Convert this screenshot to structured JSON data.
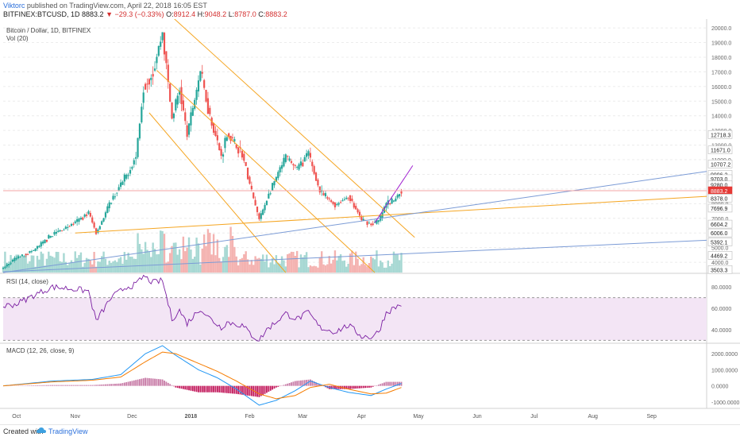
{
  "header": {
    "author": "Viktorc",
    "published_text": "published on TradingView.com, April 22, 2018 16:05 EST",
    "symbol": "BITFINEX:BTCUSD, 1D",
    "last": "8883.2",
    "arrow": "▼",
    "change": "−29.3 (−0.33%)",
    "open_label": "O:",
    "open": "8912.4",
    "high_label": "H:",
    "high": "9048.2",
    "low_label": "L:",
    "low": "8787.0",
    "close_label": "C:",
    "close": "8883.2"
  },
  "panes": {
    "main_title": "Bitcoin / Dollar, 1D, BITFINEX",
    "volume_label": "Vol (20)",
    "rsi_label": "RSI (14, close)",
    "macd_label": "MACD (12, 26, close, 9)"
  },
  "footer": {
    "created": "Created with",
    "brand": "TradingView"
  },
  "colors": {
    "up": "#26a69a",
    "down": "#ef5350",
    "channel": "#f5a623",
    "blue_line": "#7b9bd6",
    "purple_line": "#a020d0",
    "rsi_line": "#7b1fa2",
    "rsi_band": "#f3e5f5",
    "macd_line": "#2196f3",
    "signal_line": "#f57c00"
  },
  "chart_data": [
    {
      "type": "candlestick",
      "title": "Bitcoin / Dollar, 1D, BITFINEX",
      "ylim": [
        3300,
        20600
      ],
      "x_ticks": [
        "Oct",
        "Nov",
        "Dec",
        "2018",
        "Feb",
        "Mar",
        "Apr",
        "May",
        "Jun",
        "Jul",
        "Aug",
        "Sep"
      ],
      "y_ticks": [
        20000,
        19000,
        18000,
        17000,
        16000,
        15000,
        14000,
        13000,
        12000,
        11000,
        10000,
        9000,
        8000,
        7000,
        6000,
        5000,
        4000
      ],
      "price_labels": [
        "12718.3",
        "11671.0",
        "10707.2",
        "9996.2",
        "9703.0",
        "9280.0",
        "8883.2",
        "8378.0",
        "7696.9",
        "6604.2",
        "6006.0",
        "5392.1",
        "4469.2",
        "3503.3"
      ],
      "anchors": [
        [
          "2017-09-24",
          3600
        ],
        [
          "2017-10-01",
          4300
        ],
        [
          "2017-10-10",
          4800
        ],
        [
          "2017-10-20",
          5900
        ],
        [
          "2017-11-01",
          6700
        ],
        [
          "2017-11-08",
          7400
        ],
        [
          "2017-11-12",
          6000
        ],
        [
          "2017-11-20",
          8200
        ],
        [
          "2017-11-28",
          9900
        ],
        [
          "2017-12-03",
          11200
        ],
        [
          "2017-12-07",
          16000
        ],
        [
          "2017-12-12",
          17000
        ],
        [
          "2017-12-17",
          19700
        ],
        [
          "2017-12-22",
          13800
        ],
        [
          "2017-12-26",
          15800
        ],
        [
          "2017-12-30",
          12700
        ],
        [
          "2018-01-06",
          17100
        ],
        [
          "2018-01-10",
          14500
        ],
        [
          "2018-01-17",
          11200
        ],
        [
          "2018-01-20",
          12800
        ],
        [
          "2018-01-28",
          11400
        ],
        [
          "2018-02-02",
          8800
        ],
        [
          "2018-02-06",
          6900
        ],
        [
          "2018-02-10",
          8300
        ],
        [
          "2018-02-20",
          11200
        ],
        [
          "2018-02-26",
          10400
        ],
        [
          "2018-03-04",
          11400
        ],
        [
          "2018-03-10",
          8800
        ],
        [
          "2018-03-18",
          7900
        ],
        [
          "2018-03-25",
          8500
        ],
        [
          "2018-04-01",
          6900
        ],
        [
          "2018-04-06",
          6600
        ],
        [
          "2018-04-10",
          6800
        ],
        [
          "2018-04-14",
          8000
        ],
        [
          "2018-04-18",
          8200
        ],
        [
          "2018-04-22",
          8883
        ]
      ],
      "volume": {
        "name": "Vol (20)"
      },
      "drawings": [
        {
          "kind": "channel-line",
          "p1": [
            "2017-12-20",
            21000
          ],
          "p2": [
            "2018-04-29",
            5700
          ]
        },
        {
          "kind": "channel-line",
          "p1": [
            "2017-12-14",
            17100
          ],
          "p2": [
            "2018-04-08",
            3300
          ]
        },
        {
          "kind": "channel-line",
          "p1": [
            "2017-12-10",
            14200
          ],
          "p2": [
            "2018-02-20",
            3300
          ]
        },
        {
          "kind": "support-line",
          "p1": [
            "2017-11-01",
            6000
          ],
          "p2": [
            "2018-09-30",
            8500
          ]
        },
        {
          "kind": "trend-line",
          "p1": [
            "2017-09-24",
            3350
          ],
          "p2": [
            "2018-09-30",
            5500
          ]
        },
        {
          "kind": "trend-line",
          "p1": [
            "2017-09-24",
            3300
          ],
          "p2": [
            "2018-09-30",
            10200
          ]
        },
        {
          "kind": "trend-line",
          "p1": [
            "2018-04-08",
            6700
          ],
          "p2": [
            "2018-04-28",
            10600
          ]
        }
      ]
    },
    {
      "type": "line",
      "title": "RSI (14, close)",
      "ylim": [
        28,
        92
      ],
      "y_ticks": [
        80,
        60,
        40
      ],
      "y_tick_labels": [
        "80.0000",
        "60.0000",
        "40.0000"
      ],
      "bands": [
        70,
        30
      ],
      "anchors": [
        [
          "2017-09-24",
          62
        ],
        [
          "2017-10-01",
          64
        ],
        [
          "2017-10-10",
          72
        ],
        [
          "2017-10-20",
          80
        ],
        [
          "2017-11-01",
          78
        ],
        [
          "2017-11-08",
          76
        ],
        [
          "2017-11-12",
          48
        ],
        [
          "2017-11-20",
          70
        ],
        [
          "2017-11-28",
          80
        ],
        [
          "2017-12-03",
          82
        ],
        [
          "2017-12-07",
          90
        ],
        [
          "2017-12-12",
          84
        ],
        [
          "2017-12-17",
          86
        ],
        [
          "2017-12-22",
          50
        ],
        [
          "2017-12-26",
          58
        ],
        [
          "2017-12-30",
          46
        ],
        [
          "2018-01-06",
          60
        ],
        [
          "2018-01-10",
          52
        ],
        [
          "2018-01-17",
          42
        ],
        [
          "2018-01-20",
          47
        ],
        [
          "2018-01-28",
          44
        ],
        [
          "2018-02-02",
          35
        ],
        [
          "2018-02-06",
          30
        ],
        [
          "2018-02-10",
          40
        ],
        [
          "2018-02-20",
          55
        ],
        [
          "2018-02-26",
          50
        ],
        [
          "2018-03-04",
          56
        ],
        [
          "2018-03-10",
          42
        ],
        [
          "2018-03-18",
          38
        ],
        [
          "2018-03-25",
          44
        ],
        [
          "2018-04-01",
          34
        ],
        [
          "2018-04-06",
          33
        ],
        [
          "2018-04-10",
          38
        ],
        [
          "2018-04-14",
          56
        ],
        [
          "2018-04-18",
          60
        ],
        [
          "2018-04-22",
          64
        ]
      ]
    },
    {
      "type": "line",
      "title": "MACD (12, 26, close, 9)",
      "ylim": [
        -1400,
        2600
      ],
      "y_ticks": [
        2000,
        1000,
        0,
        -1000
      ],
      "y_tick_labels": [
        "2000.0000",
        "1000.0000",
        "0.0000",
        "-1000.0000"
      ],
      "series": [
        {
          "kind": "macd",
          "anchors": [
            [
              "2017-09-24",
              0
            ],
            [
              "2017-10-20",
              300
            ],
            [
              "2017-11-10",
              400
            ],
            [
              "2017-11-25",
              700
            ],
            [
              "2017-12-08",
              2000
            ],
            [
              "2017-12-17",
              2500
            ],
            [
              "2017-12-24",
              1900
            ],
            [
              "2018-01-05",
              1000
            ],
            [
              "2018-01-15",
              500
            ],
            [
              "2018-01-25",
              -200
            ],
            [
              "2018-02-06",
              -1200
            ],
            [
              "2018-02-15",
              -900
            ],
            [
              "2018-02-25",
              -300
            ],
            [
              "2018-03-05",
              300
            ],
            [
              "2018-03-15",
              -100
            ],
            [
              "2018-03-25",
              -400
            ],
            [
              "2018-04-06",
              -600
            ],
            [
              "2018-04-14",
              -200
            ],
            [
              "2018-04-22",
              150
            ]
          ]
        },
        {
          "kind": "signal",
          "anchors": [
            [
              "2017-09-24",
              0
            ],
            [
              "2017-10-20",
              250
            ],
            [
              "2017-11-10",
              350
            ],
            [
              "2017-11-25",
              550
            ],
            [
              "2017-12-08",
              1500
            ],
            [
              "2017-12-17",
              2100
            ],
            [
              "2017-12-24",
              2000
            ],
            [
              "2018-01-05",
              1400
            ],
            [
              "2018-01-15",
              900
            ],
            [
              "2018-01-25",
              300
            ],
            [
              "2018-02-06",
              -500
            ],
            [
              "2018-02-15",
              -800
            ],
            [
              "2018-02-25",
              -600
            ],
            [
              "2018-03-05",
              -100
            ],
            [
              "2018-03-15",
              100
            ],
            [
              "2018-03-25",
              -200
            ],
            [
              "2018-04-06",
              -500
            ],
            [
              "2018-04-14",
              -450
            ],
            [
              "2018-04-22",
              -100
            ]
          ]
        }
      ]
    }
  ]
}
